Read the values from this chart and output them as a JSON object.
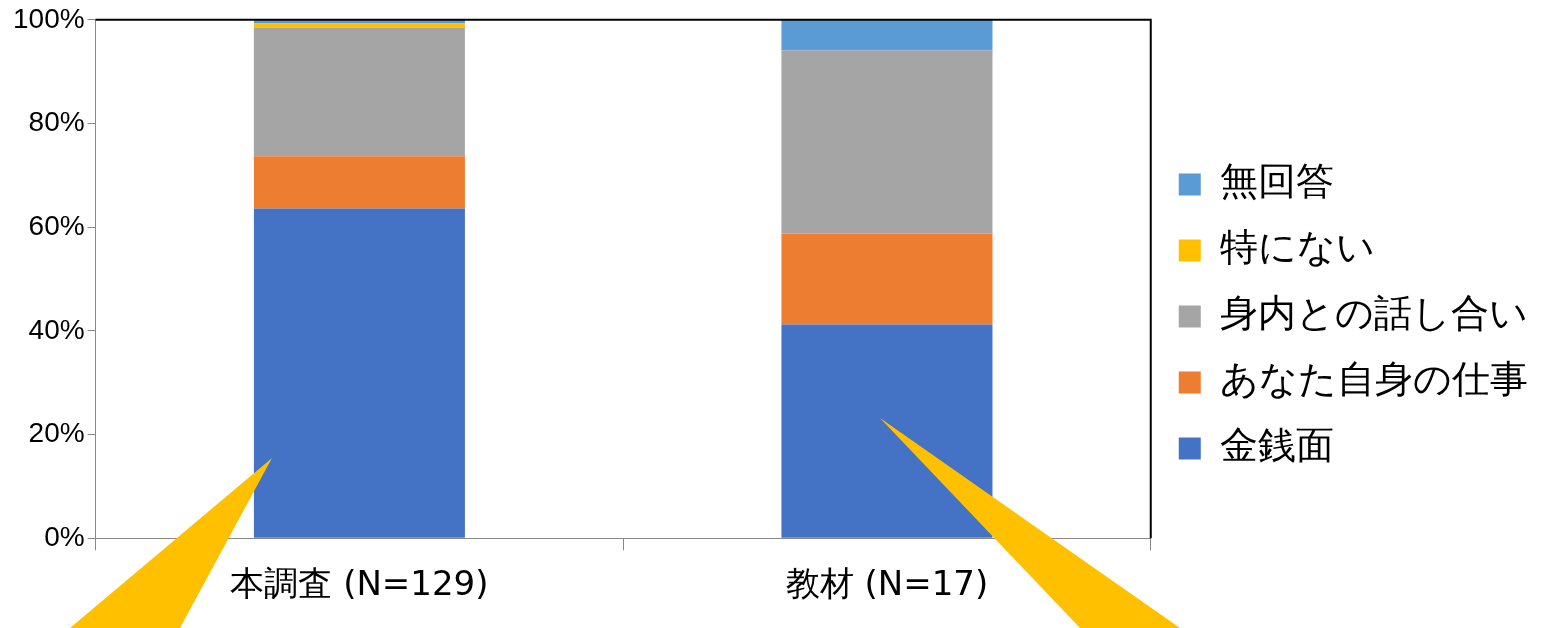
{
  "chart_data": {
    "type": "bar",
    "stacked": true,
    "categories": [
      "本調査 (N=129)",
      "教材 (N=17)"
    ],
    "series": [
      {
        "name": "金銭面",
        "color": "#4472c4",
        "values": [
          63.6,
          41.2
        ]
      },
      {
        "name": "あなた自身の仕事",
        "color": "#ed7d31",
        "values": [
          10.1,
          17.6
        ]
      },
      {
        "name": "身内との話し合い",
        "color": "#a5a5a5",
        "values": [
          24.8,
          35.3
        ]
      },
      {
        "name": "特にない",
        "color": "#ffc000",
        "values": [
          0.8,
          0
        ]
      },
      {
        "name": "無回答",
        "color": "#5b9bd5",
        "values": [
          0.7,
          5.9
        ]
      }
    ],
    "ylim": [
      0,
      100
    ],
    "yticks": [
      {
        "value": 0,
        "label": "0%"
      },
      {
        "value": 20,
        "label": "20%"
      },
      {
        "value": 40,
        "label": "40%"
      },
      {
        "value": 60,
        "label": "60%"
      },
      {
        "value": 80,
        "label": "80%"
      },
      {
        "value": 100,
        "label": "100%"
      }
    ],
    "grid": false,
    "legend": "right"
  }
}
